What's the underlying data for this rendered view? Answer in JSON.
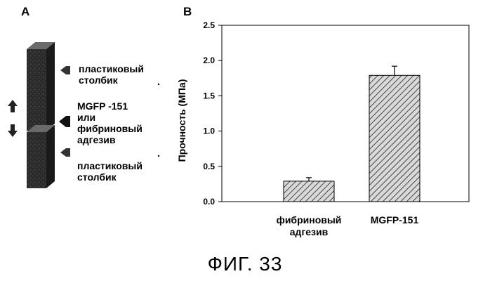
{
  "panel_a": {
    "letter": "A",
    "labels": {
      "top_post": "пластиковый\nстолбик",
      "middle": "MGFP -151\nили\nфибриновый\nадгезив",
      "bottom_post": "пластиковый\nстолбик"
    },
    "icons": [
      "arrow-up-icon",
      "arrow-down-icon",
      "pointer-arrow-icon"
    ],
    "colors": {
      "block": "#2b2b2b",
      "arrow": "#222222"
    }
  },
  "panel_b": {
    "letter": "B"
  },
  "chart_data": {
    "type": "bar",
    "categories": [
      "фибриновый\nадгезив",
      "MGFP-151"
    ],
    "series": [
      {
        "values": [
          0.29,
          1.79
        ],
        "errors": [
          0.05,
          0.13
        ]
      }
    ],
    "xlabel": "",
    "ylabel": "Прочность (МПа)",
    "ylim": [
      0,
      2.5
    ],
    "yticks": [
      "0.0",
      "0.5",
      "1.0",
      "1.5",
      "2.0",
      "2.5"
    ],
    "grid": false,
    "bar_fill": "hatched",
    "bar_color": "#444444"
  },
  "caption": "ФИГ. 33"
}
